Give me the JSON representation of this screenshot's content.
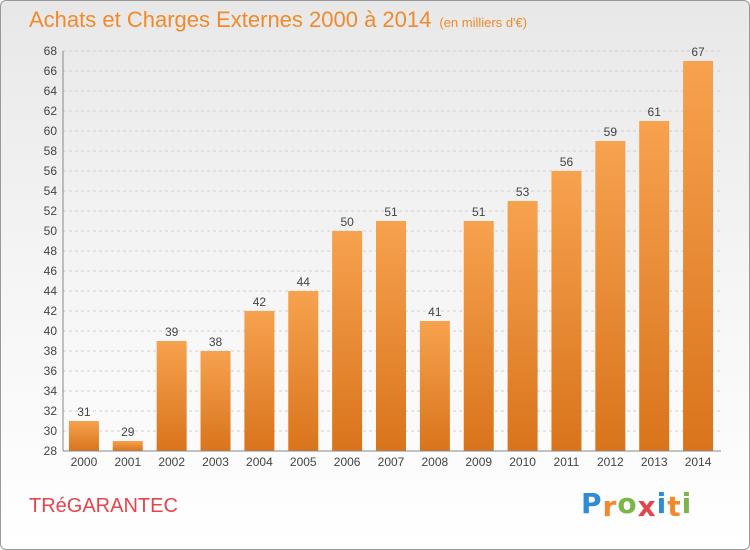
{
  "chart_data": {
    "type": "bar",
    "title": "Achats et Charges Externes 2000 à 2014",
    "subtitle": "(en milliers d'€)",
    "categories": [
      "2000",
      "2001",
      "2002",
      "2003",
      "2004",
      "2005",
      "2006",
      "2007",
      "2008",
      "2009",
      "2010",
      "2011",
      "2012",
      "2013",
      "2014"
    ],
    "values": [
      31,
      29,
      39,
      38,
      42,
      44,
      50,
      51,
      41,
      51,
      53,
      56,
      59,
      61,
      67
    ],
    "ylim": [
      28,
      68
    ],
    "ytick_step": 2,
    "xlabel": "",
    "ylabel": "",
    "grid": "horizontal",
    "bar_color_top": "#f7a24f",
    "bar_color_bottom": "#d9741c"
  },
  "commune": "TRéGARANTEC",
  "logo": {
    "text": "Proxiti",
    "letters": [
      {
        "ch": "P",
        "color": "#2e8bd6"
      },
      {
        "ch": "r",
        "color": "#f08a2c"
      },
      {
        "ch": "o",
        "color": "#7ab648"
      },
      {
        "ch": "x",
        "color": "#e4454d"
      },
      {
        "ch": "i",
        "color": "#2e8bd6"
      },
      {
        "ch": "t",
        "color": "#f08a2c"
      },
      {
        "ch": "i",
        "color": "#7ab648"
      }
    ]
  }
}
